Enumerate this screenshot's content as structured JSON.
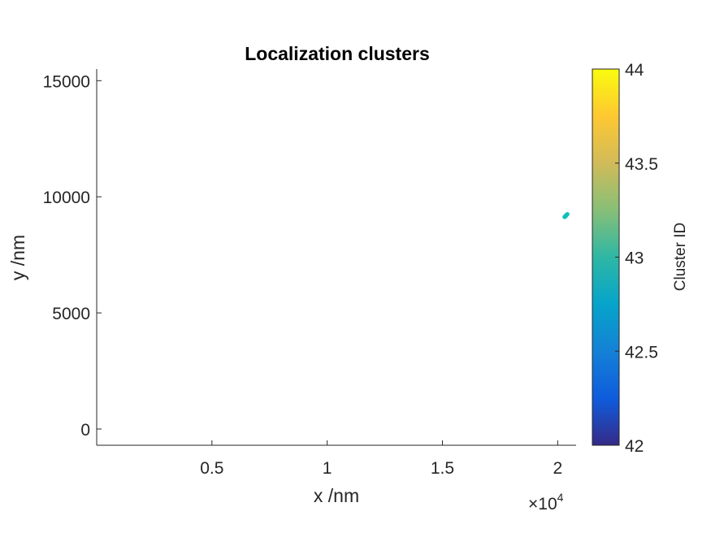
{
  "chart_data": {
    "type": "scatter",
    "title": "Localization clusters",
    "xlabel": "x /nm",
    "ylabel": "y /nm",
    "x_multiplier": {
      "times": "×",
      "base": "10",
      "exponent": "4"
    },
    "xlim": [
      0,
      20800
    ],
    "ylim": [
      -700,
      15500
    ],
    "xticks": [
      5000,
      10000,
      15000,
      20000
    ],
    "xtick_labels": [
      "0.5",
      "1",
      "1.5",
      "2"
    ],
    "yticks": [
      0,
      5000,
      10000,
      15000
    ],
    "ytick_labels": [
      "0",
      "5000",
      "10000",
      "15000"
    ],
    "grid": false,
    "colormap": "parula",
    "series": [
      {
        "color": "#12BEB9",
        "x": [
          20300,
          20330,
          20360,
          20390,
          20420,
          20350
        ],
        "y": [
          9130,
          9170,
          9200,
          9230,
          9250,
          9160
        ]
      }
    ],
    "colorbar": {
      "label": "Cluster ID",
      "range": [
        42,
        44
      ],
      "ticks": [
        42,
        42.5,
        43,
        43.5,
        44
      ],
      "tick_labels": [
        "42",
        "42.5",
        "43",
        "43.5",
        "44"
      ],
      "colors": [
        "#352A87",
        "#0F5CDD",
        "#1481D6",
        "#06A4CA",
        "#2EB7A4",
        "#87BF77",
        "#D1BB59",
        "#FEC832",
        "#F9FB0E"
      ]
    }
  }
}
